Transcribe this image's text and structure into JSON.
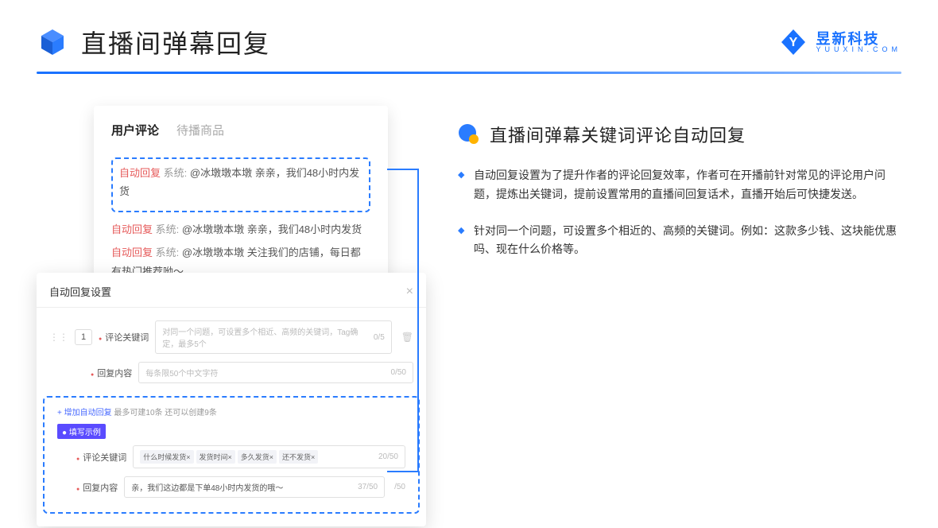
{
  "colors": {
    "accent_blue": "#1a72ff",
    "dash_blue": "#2a7cff",
    "red_tag": "#e65a5a",
    "purple_badge": "#5a4bff",
    "text_dark": "#222",
    "text_gray": "#999"
  },
  "header": {
    "title": "直播间弹幕回复",
    "logo_cn": "昱新科技",
    "logo_en": "YUUXIN.COM"
  },
  "comments_card": {
    "tab_active": "用户评论",
    "tab_inactive": "待播商品",
    "row1_auto": "自动回复",
    "row1_sys": "系统:",
    "row1_text": "@冰墩墩本墩 亲亲，我们48小时内发货",
    "row2_auto": "自动回复",
    "row2_sys": "系统:",
    "row2_text": "@冰墩墩本墩 亲亲，我们48小时内发货",
    "row3_auto": "自动回复",
    "row3_sys": "系统:",
    "row3_text": "@冰墩墩本墩 关注我们的店铺，每日都有热门推荐呦～"
  },
  "settings_card": {
    "title": "自动回复设置",
    "num": "1",
    "label_keyword": "评论关键词",
    "ph_keyword": "对同一个问题，可设置多个相近、高频的关键词，Tag确定，最多5个",
    "count_keyword": "0/5",
    "label_reply": "回复内容",
    "ph_reply": "每条限50个中文字符",
    "count_reply": "0/50",
    "add_link": "+ 增加自动回复",
    "add_hint": "最多可建10条 还可以创建9条",
    "example_badge": "● 填写示例",
    "ex_label_keyword": "评论关键词",
    "ex_tags": [
      "什么时候发货×",
      "发货时间×",
      "多久发货×",
      "还不发货×"
    ],
    "ex_count_keyword": "20/50",
    "ex_label_reply": "回复内容",
    "ex_reply_text": "亲，我们这边都是下单48小时内发货的哦～",
    "ex_count_reply": "37/50",
    "count_far": "/50"
  },
  "right": {
    "section_title": "直播间弹幕关键词评论自动回复",
    "desc1": "自动回复设置为了提升作者的评论回复效率，作者可在开播前针对常见的评论用户问题，提炼出关键词，提前设置常用的直播间回复话术，直播开始后可快捷发送。",
    "desc2": "针对同一个问题，可设置多个相近的、高频的关键词。例如：这款多少钱、这块能优惠吗、现在什么价格等。"
  }
}
